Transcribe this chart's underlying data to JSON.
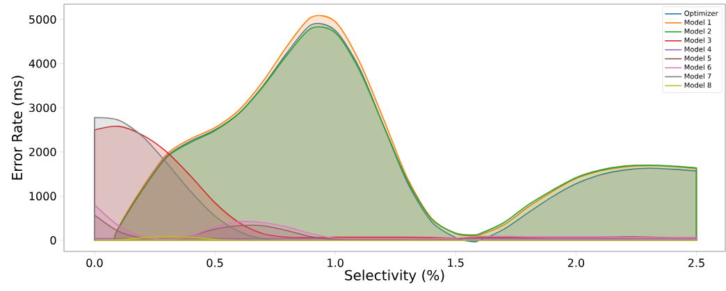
{
  "chart_data": {
    "type": "area",
    "xlabel": "Selectivity (%)",
    "ylabel": "Error Rate (ms)",
    "xlim": [
      -0.127,
      2.62
    ],
    "ylim": [
      -252,
      5346
    ],
    "xticks": [
      {
        "value": 0,
        "label": "0.0"
      },
      0.5,
      {
        "value": 1,
        "label": "1.0"
      },
      1.5,
      {
        "value": 2,
        "label": "2.0"
      },
      2.5
    ],
    "yticks": [
      0,
      1000,
      2000,
      3000,
      4000,
      5000
    ],
    "grid": false,
    "legend": "top right",
    "marker": "none",
    "line_style": "solid",
    "x": [
      0,
      0.1,
      0.2,
      0.3,
      0.4,
      0.5,
      0.6,
      0.7,
      0.8,
      0.9,
      1.0,
      1.1,
      1.2,
      1.3,
      1.4,
      1.5,
      1.6,
      1.7,
      1.8,
      1.9,
      2.0,
      2.1,
      2.2,
      2.3,
      2.4,
      2.5
    ],
    "series": [
      {
        "name": "Optimizer",
        "color": "#1f77b4",
        "x": [
          0.08,
          0.1,
          0.2,
          0.3,
          0.4,
          0.5,
          0.6,
          0.7,
          0.8,
          0.9,
          1.0,
          1.1,
          1.2,
          1.3,
          1.4,
          1.5,
          1.57,
          1.6,
          1.7,
          1.8,
          1.9,
          2.0,
          2.1,
          2.2,
          2.3,
          2.4,
          2.5
        ],
        "values": [
          0,
          280,
          1150,
          1900,
          2250,
          2500,
          2880,
          3500,
          4250,
          4880,
          4750,
          3900,
          2600,
          1300,
          420,
          60,
          -30,
          0,
          250,
          620,
          980,
          1280,
          1480,
          1590,
          1630,
          1610,
          1570
        ]
      },
      {
        "name": "Model 1",
        "color": "#ff7f0e",
        "x": [
          0.08,
          0.1,
          0.2,
          0.3,
          0.4,
          0.5,
          0.6,
          0.7,
          0.8,
          0.9,
          1.0,
          1.1,
          1.2,
          1.3,
          1.4,
          1.5,
          1.57,
          1.6,
          1.7,
          1.8,
          1.9,
          2.0,
          2.1,
          2.2,
          2.3,
          2.4,
          2.5
        ],
        "values": [
          0,
          300,
          1200,
          1950,
          2300,
          2550,
          2950,
          3600,
          4400,
          5050,
          4950,
          4050,
          2750,
          1400,
          500,
          150,
          100,
          120,
          350,
          750,
          1100,
          1400,
          1570,
          1660,
          1690,
          1670,
          1620
        ]
      },
      {
        "name": "Model 2",
        "color": "#2ca02c",
        "x": [
          0.08,
          0.1,
          0.2,
          0.3,
          0.4,
          0.5,
          0.6,
          0.7,
          0.8,
          0.9,
          1.0,
          1.1,
          1.2,
          1.3,
          1.4,
          1.5,
          1.57,
          1.6,
          1.7,
          1.8,
          1.9,
          2.0,
          2.1,
          2.2,
          2.3,
          2.4,
          2.5
        ],
        "values": [
          0,
          280,
          1150,
          1880,
          2220,
          2480,
          2870,
          3480,
          4200,
          4800,
          4700,
          3850,
          2600,
          1350,
          480,
          160,
          120,
          150,
          400,
          800,
          1130,
          1420,
          1590,
          1680,
          1700,
          1680,
          1640
        ]
      },
      {
        "name": "Model 3",
        "color": "#d62728",
        "values": [
          2500,
          2580,
          2380,
          2000,
          1450,
          850,
          400,
          150,
          70,
          60,
          70,
          70,
          70,
          70,
          60,
          50,
          60,
          60,
          60,
          70,
          70,
          70,
          70,
          70,
          60,
          60
        ]
      },
      {
        "name": "Model 4",
        "color": "#9467bd",
        "values": [
          40,
          40,
          40,
          40,
          40,
          40,
          40,
          40,
          40,
          40,
          40,
          40,
          40,
          40,
          40,
          40,
          40,
          40,
          40,
          40,
          40,
          40,
          40,
          40,
          40,
          40
        ]
      },
      {
        "name": "Model 5",
        "color": "#8c564b",
        "values": [
          570,
          200,
          50,
          20,
          100,
          250,
          330,
          330,
          220,
          80,
          20,
          20,
          20,
          30,
          30,
          40,
          60,
          70,
          80,
          80,
          80,
          80,
          80,
          70,
          60,
          60
        ]
      },
      {
        "name": "Model 6",
        "color": "#e377c2",
        "values": [
          800,
          330,
          80,
          20,
          100,
          300,
          420,
          400,
          300,
          150,
          50,
          40,
          40,
          40,
          40,
          50,
          90,
          90,
          80,
          80,
          80,
          80,
          70,
          60,
          60,
          60
        ]
      },
      {
        "name": "Model 7",
        "color": "#7f7f7f",
        "values": [
          2780,
          2720,
          2350,
          1750,
          1100,
          550,
          200,
          30,
          0,
          0,
          0,
          0,
          0,
          0,
          0,
          0,
          0,
          0,
          0,
          0,
          0,
          0,
          0,
          0,
          0,
          0
        ]
      },
      {
        "name": "Model 8",
        "color": "#bcbd22",
        "values": [
          0,
          10,
          60,
          90,
          70,
          20,
          0,
          0,
          0,
          0,
          0,
          0,
          0,
          0,
          0,
          0,
          0,
          0,
          0,
          0,
          0,
          0,
          0,
          0,
          0,
          0
        ]
      }
    ]
  }
}
